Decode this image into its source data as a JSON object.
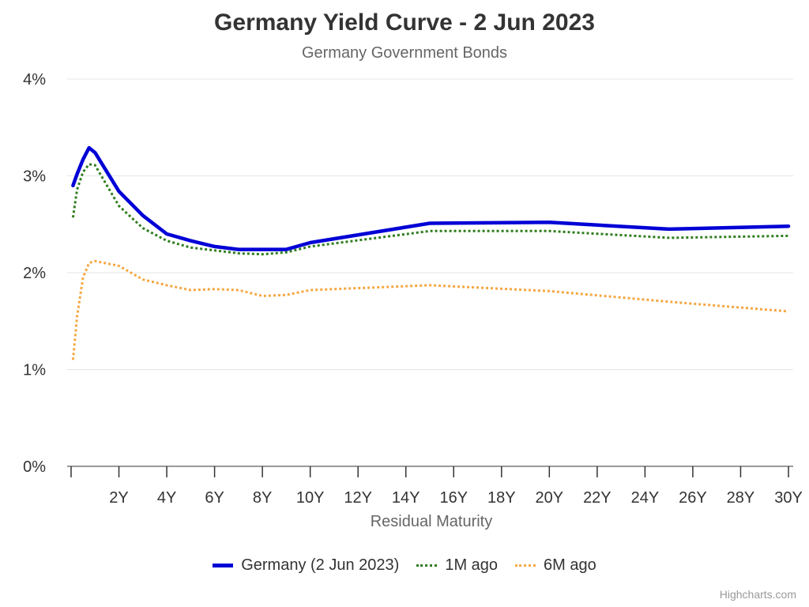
{
  "chart_data": {
    "type": "line",
    "title": "Germany Yield Curve - 2 Jun 2023",
    "subtitle": "Germany Government Bonds",
    "xlabel": "Residual Maturity",
    "ylabel": "",
    "xlim": [
      0,
      30
    ],
    "ylim": [
      0,
      4
    ],
    "x_ticks": [
      2,
      4,
      6,
      8,
      10,
      12,
      14,
      16,
      18,
      20,
      22,
      24,
      26,
      28,
      30
    ],
    "x_tick_labels": [
      "2Y",
      "4Y",
      "6Y",
      "8Y",
      "10Y",
      "12Y",
      "14Y",
      "16Y",
      "18Y",
      "20Y",
      "22Y",
      "24Y",
      "26Y",
      "28Y",
      "30Y"
    ],
    "y_ticks": [
      0,
      1,
      2,
      3,
      4
    ],
    "y_tick_labels": [
      "0%",
      "1%",
      "2%",
      "3%",
      "4%"
    ],
    "grid": true,
    "legend": "bottom-center",
    "series": [
      {
        "name": "Germany (2 Jun 2023)",
        "color": "#0000d6",
        "style": "solid",
        "points": [
          [
            0.08,
            2.9
          ],
          [
            0.25,
            3.02
          ],
          [
            0.5,
            3.17
          ],
          [
            0.75,
            3.29
          ],
          [
            1,
            3.24
          ],
          [
            2,
            2.84
          ],
          [
            3,
            2.59
          ],
          [
            4,
            2.4
          ],
          [
            5,
            2.33
          ],
          [
            6,
            2.27
          ],
          [
            7,
            2.24
          ],
          [
            8,
            2.24
          ],
          [
            9,
            2.24
          ],
          [
            10,
            2.31
          ],
          [
            15,
            2.51
          ],
          [
            20,
            2.52
          ],
          [
            25,
            2.45
          ],
          [
            30,
            2.48
          ]
        ]
      },
      {
        "name": "1M ago",
        "color": "#2e7d1e",
        "style": "dotted",
        "points": [
          [
            0.08,
            2.57
          ],
          [
            0.25,
            2.86
          ],
          [
            0.5,
            3.04
          ],
          [
            0.75,
            3.12
          ],
          [
            1,
            3.11
          ],
          [
            2,
            2.69
          ],
          [
            3,
            2.46
          ],
          [
            4,
            2.33
          ],
          [
            5,
            2.26
          ],
          [
            6,
            2.23
          ],
          [
            7,
            2.2
          ],
          [
            8,
            2.19
          ],
          [
            9,
            2.21
          ],
          [
            10,
            2.27
          ],
          [
            15,
            2.43
          ],
          [
            20,
            2.43
          ],
          [
            25,
            2.36
          ],
          [
            30,
            2.38
          ]
        ]
      },
      {
        "name": "6M ago",
        "color": "#f5a742",
        "style": "dotted",
        "points": [
          [
            0.08,
            1.1
          ],
          [
            0.25,
            1.55
          ],
          [
            0.5,
            1.95
          ],
          [
            0.75,
            2.1
          ],
          [
            1,
            2.12
          ],
          [
            2,
            2.07
          ],
          [
            3,
            1.93
          ],
          [
            4,
            1.87
          ],
          [
            5,
            1.82
          ],
          [
            6,
            1.83
          ],
          [
            7,
            1.82
          ],
          [
            8,
            1.76
          ],
          [
            9,
            1.77
          ],
          [
            10,
            1.82
          ],
          [
            15,
            1.87
          ],
          [
            20,
            1.81
          ],
          [
            25,
            1.7
          ],
          [
            30,
            1.6
          ]
        ]
      }
    ],
    "credits": "Highcharts.com"
  }
}
